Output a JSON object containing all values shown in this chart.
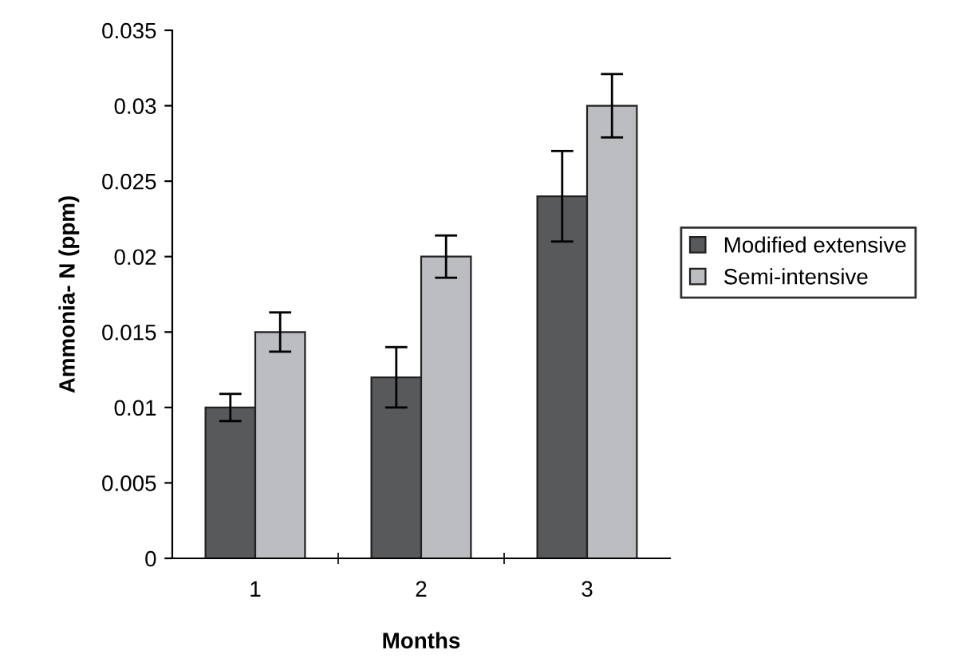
{
  "chart_data": {
    "type": "bar",
    "xlabel": "Months",
    "ylabel": "Ammonia- N (ppm)",
    "categories": [
      "1",
      "2",
      "3"
    ],
    "series": [
      {
        "name": "Modified extensive",
        "color": "#58595b",
        "values": [
          0.01,
          0.012,
          0.024
        ],
        "errors": [
          0.0009,
          0.002,
          0.003
        ]
      },
      {
        "name": "Semi-intensive",
        "color": "#bcbdc1",
        "values": [
          0.015,
          0.02,
          0.03
        ],
        "errors": [
          0.0013,
          0.0014,
          0.0021
        ]
      }
    ],
    "ylim": [
      0,
      0.035
    ],
    "yticks": [
      0,
      0.005,
      0.01,
      0.015,
      0.02,
      0.025,
      0.03,
      0.035
    ],
    "grid": false,
    "legend": "right"
  }
}
